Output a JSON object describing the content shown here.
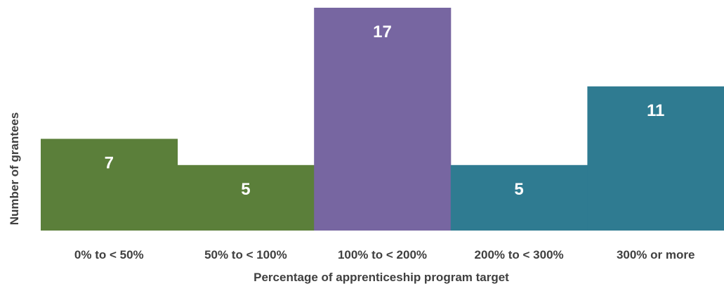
{
  "chart_data": {
    "type": "bar",
    "categories": [
      "0% to < 50%",
      "50% to < 100%",
      "100% to < 200%",
      "200% to < 300%",
      "300% or more"
    ],
    "values": [
      7,
      5,
      17,
      5,
      11
    ],
    "data_labels": [
      "7",
      "5",
      "17",
      "5",
      "11"
    ],
    "colors": [
      "#5b7f3a",
      "#5b7f3a",
      "#7766a1",
      "#2f7b91",
      "#2f7b91"
    ],
    "xlabel": "Percentage of apprenticeship program target",
    "ylabel": "Number of grantees",
    "ylim": [
      0,
      17
    ],
    "grid": false,
    "legend": "none",
    "bar_gap": "none"
  }
}
